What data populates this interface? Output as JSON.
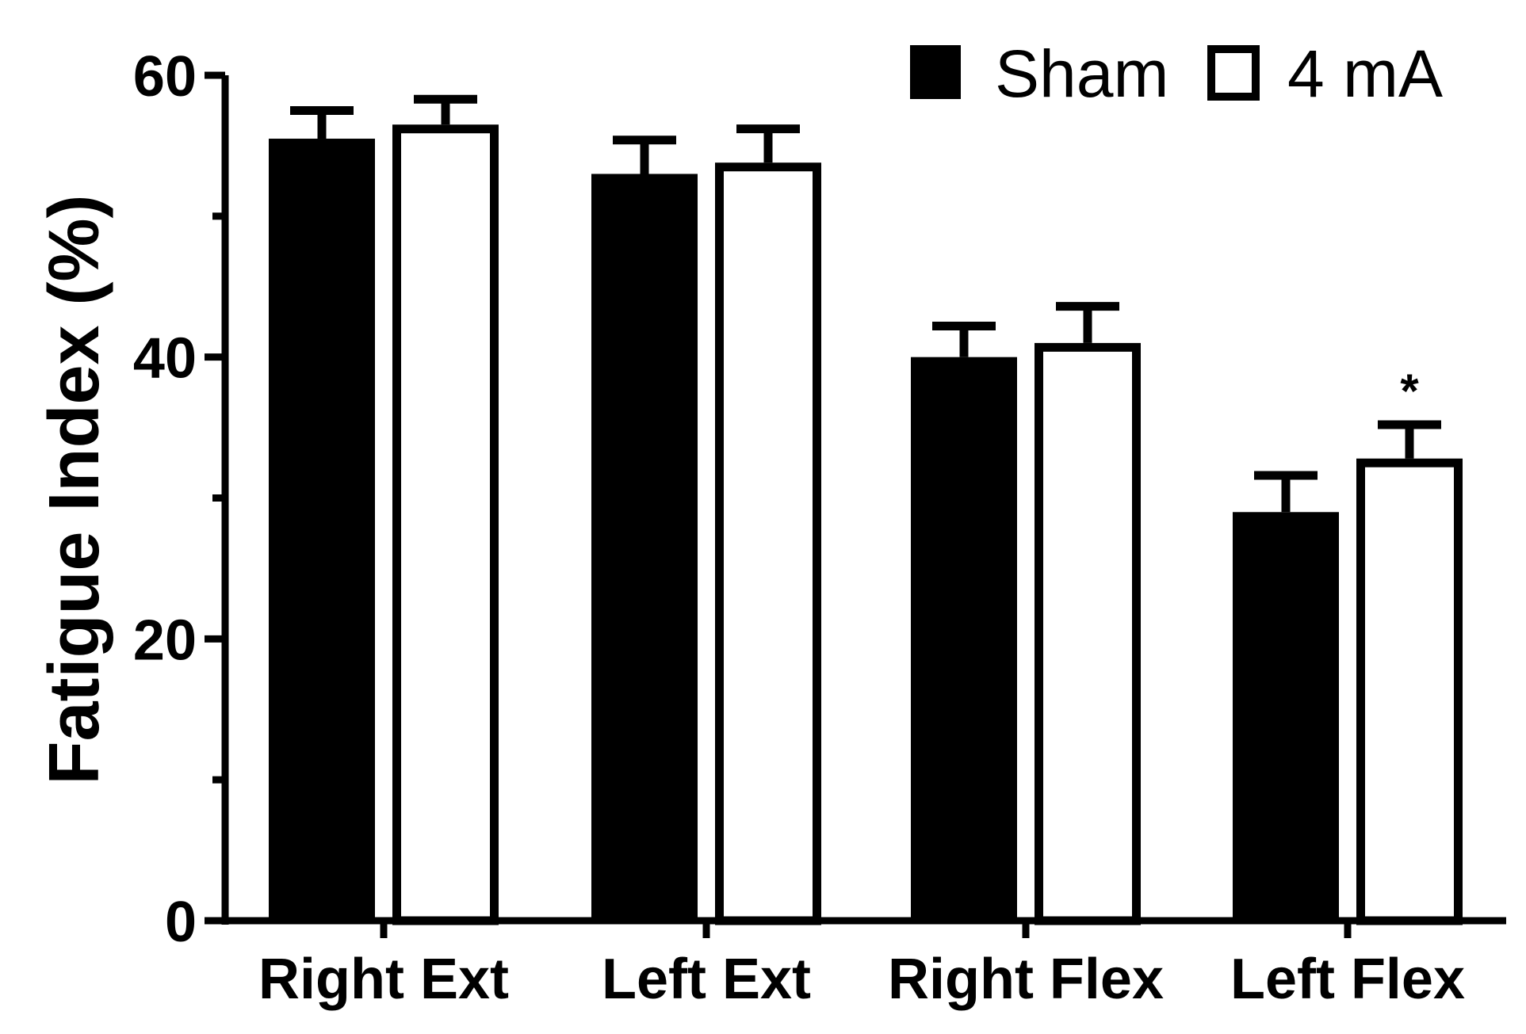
{
  "chart_data": {
    "type": "bar",
    "ylabel": "Fatigue Index (%)",
    "xlabel": "",
    "categories": [
      "Right Ext",
      "Left Ext",
      "Right Flex",
      "Left Flex"
    ],
    "ylim": [
      0,
      60
    ],
    "yticks": [
      0,
      20,
      40,
      60
    ],
    "y_minor_ticks": [
      10,
      30,
      50
    ],
    "series": [
      {
        "name": "Sham",
        "fill": "#000000",
        "values": [
          55.5,
          53.0,
          40.0,
          29.0
        ],
        "errors": [
          2.0,
          2.4,
          2.2,
          2.6
        ]
      },
      {
        "name": "4 mA",
        "fill": "#ffffff",
        "values": [
          56.5,
          53.8,
          41.0,
          32.8
        ],
        "errors": [
          1.8,
          2.4,
          2.6,
          2.4
        ]
      }
    ],
    "annotations": [
      {
        "text": "*",
        "category": "Left Flex",
        "series": "4 mA"
      }
    ],
    "legend_position": "top-right",
    "grid": false
  }
}
